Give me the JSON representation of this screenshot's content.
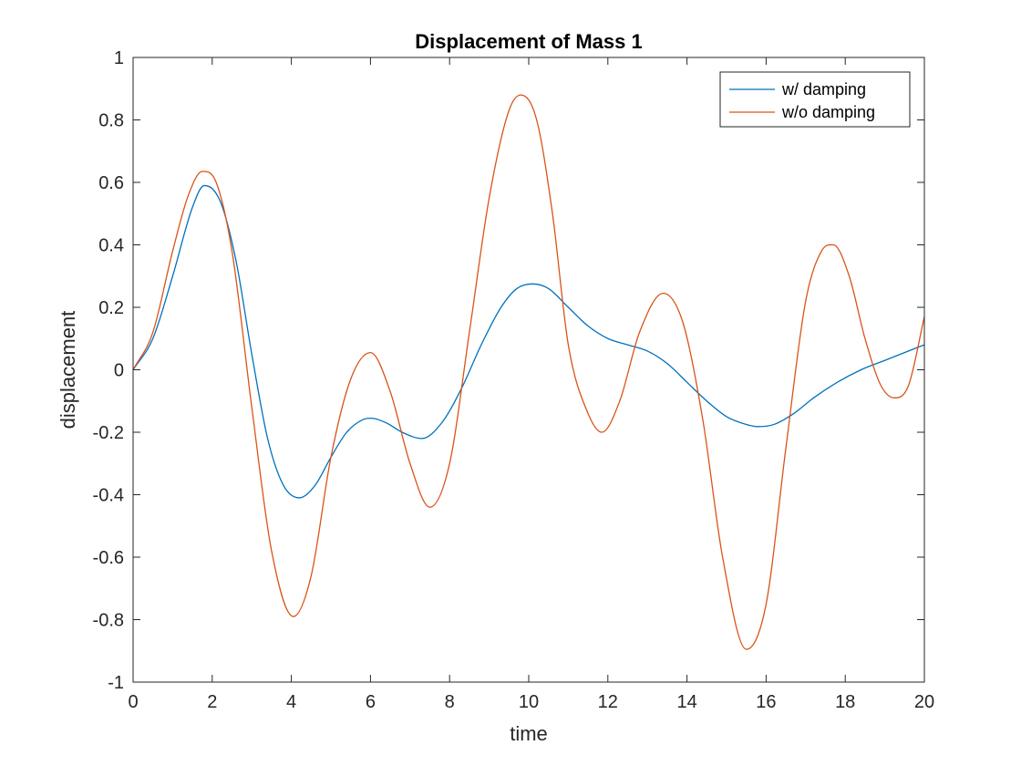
{
  "chart_data": {
    "type": "line",
    "title": "Displacement of Mass 1",
    "xlabel": "time",
    "ylabel": "displacement",
    "xlim": [
      0,
      20
    ],
    "ylim": [
      -1,
      1
    ],
    "xticks": [
      0,
      2,
      4,
      6,
      8,
      10,
      12,
      14,
      16,
      18,
      20
    ],
    "xtick_labels": [
      "0",
      "2",
      "4",
      "6",
      "8",
      "10",
      "12",
      "14",
      "16",
      "18",
      "20"
    ],
    "yticks": [
      -1,
      -0.8,
      -0.6,
      -0.4,
      -0.2,
      0,
      0.2,
      0.4,
      0.6,
      0.8,
      1
    ],
    "ytick_labels": [
      "-1",
      "-0.8",
      "-0.6",
      "-0.4",
      "-0.2",
      "0",
      "0.2",
      "0.4",
      "0.6",
      "0.8",
      "1"
    ],
    "grid": false,
    "legend_position": "top-right",
    "series": [
      {
        "name": "w/ damping",
        "color": "#0072BD",
        "x": [
          0,
          0.5,
          1.0,
          1.5,
          1.8,
          2.2,
          2.6,
          3.0,
          3.4,
          3.8,
          4.2,
          4.6,
          5.0,
          5.4,
          5.8,
          6.0,
          6.4,
          6.8,
          7.3,
          7.8,
          8.3,
          8.8,
          9.3,
          9.7,
          10.1,
          10.5,
          11.0,
          11.5,
          12.0,
          12.5,
          13.0,
          13.5,
          14.0,
          14.5,
          15.0,
          15.5,
          15.8,
          16.2,
          16.7,
          17.2,
          17.8,
          18.4,
          19.0,
          19.5,
          20.0
        ],
        "y": [
          0,
          0.1,
          0.3,
          0.52,
          0.59,
          0.54,
          0.35,
          0.05,
          -0.22,
          -0.37,
          -0.41,
          -0.37,
          -0.28,
          -0.2,
          -0.16,
          -0.155,
          -0.17,
          -0.2,
          -0.22,
          -0.17,
          -0.06,
          0.08,
          0.2,
          0.26,
          0.275,
          0.26,
          0.2,
          0.14,
          0.1,
          0.08,
          0.06,
          0.02,
          -0.04,
          -0.1,
          -0.15,
          -0.175,
          -0.182,
          -0.175,
          -0.14,
          -0.09,
          -0.04,
          0.0,
          0.03,
          0.055,
          0.08
        ]
      },
      {
        "name": "w/o damping",
        "color": "#D95319",
        "x": [
          0,
          0.5,
          1.0,
          1.4,
          1.75,
          2.1,
          2.5,
          3.0,
          3.5,
          4.05,
          4.5,
          5.0,
          5.5,
          6.0,
          6.5,
          7.0,
          7.5,
          8.0,
          8.5,
          9.0,
          9.5,
          9.8,
          10.2,
          10.6,
          11.0,
          11.5,
          11.85,
          12.3,
          12.8,
          13.4,
          13.9,
          14.4,
          14.9,
          15.5,
          16.0,
          16.5,
          17.0,
          17.4,
          17.7,
          18.1,
          18.5,
          18.9,
          19.25,
          19.6,
          20.0
        ],
        "y": [
          0,
          0.12,
          0.38,
          0.56,
          0.635,
          0.6,
          0.38,
          -0.12,
          -0.58,
          -0.79,
          -0.66,
          -0.28,
          -0.03,
          0.055,
          -0.07,
          -0.3,
          -0.44,
          -0.3,
          0.12,
          0.55,
          0.83,
          0.88,
          0.8,
          0.5,
          0.08,
          -0.14,
          -0.2,
          -0.1,
          0.12,
          0.245,
          0.15,
          -0.16,
          -0.6,
          -0.895,
          -0.75,
          -0.25,
          0.22,
          0.38,
          0.4,
          0.3,
          0.1,
          -0.05,
          -0.09,
          -0.05,
          0.17
        ]
      }
    ]
  }
}
